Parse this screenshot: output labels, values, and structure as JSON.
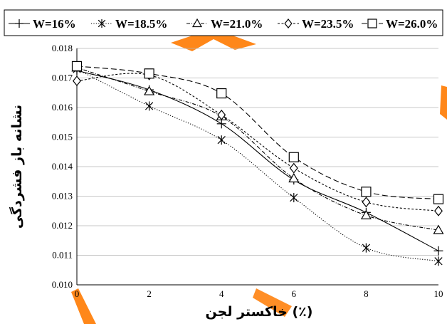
{
  "chart_data": {
    "type": "line",
    "title": "",
    "xlabel": "خاکستر لجن (٪)",
    "ylabel": "نشانه باز فشردگی",
    "xlim": [
      0,
      10
    ],
    "ylim": [
      0.01,
      0.018
    ],
    "x": [
      0,
      2,
      4,
      6,
      8,
      10
    ],
    "x_ticks": [
      "0",
      "2",
      "4",
      "6",
      "8",
      "10"
    ],
    "y_ticks": [
      "0.010",
      "0.011",
      "0.012",
      "0.013",
      "0.014",
      "0.015",
      "0.016",
      "0.017",
      "0.018"
    ],
    "grid": "horizontal",
    "legend_position": "top",
    "series": [
      {
        "name": "W=16%",
        "marker": "plus",
        "line_style": "solid",
        "color": "#000000",
        "values": [
          0.01725,
          0.0166,
          0.01545,
          0.01355,
          0.01245,
          0.01115
        ]
      },
      {
        "name": "W=18.5%",
        "marker": "star",
        "line_style": "dotted",
        "color": "#000000",
        "values": [
          0.0173,
          0.01605,
          0.0149,
          0.01295,
          0.01125,
          0.0108
        ]
      },
      {
        "name": "W=21.0%",
        "marker": "triangle",
        "line_style": "dash-dot",
        "color": "#000000",
        "values": [
          0.01735,
          0.01655,
          0.0157,
          0.0136,
          0.01235,
          0.01185
        ]
      },
      {
        "name": "W=23.5%",
        "marker": "diamond",
        "line_style": "short-dash",
        "color": "#000000",
        "values": [
          0.0169,
          0.0171,
          0.01575,
          0.01395,
          0.0128,
          0.0125
        ]
      },
      {
        "name": "W=26.0%",
        "marker": "square",
        "line_style": "long-dash",
        "color": "#000000",
        "values": [
          0.0174,
          0.01715,
          0.01648,
          0.01432,
          0.01315,
          0.0129
        ]
      }
    ]
  },
  "watermark_color": "#ff7a00"
}
